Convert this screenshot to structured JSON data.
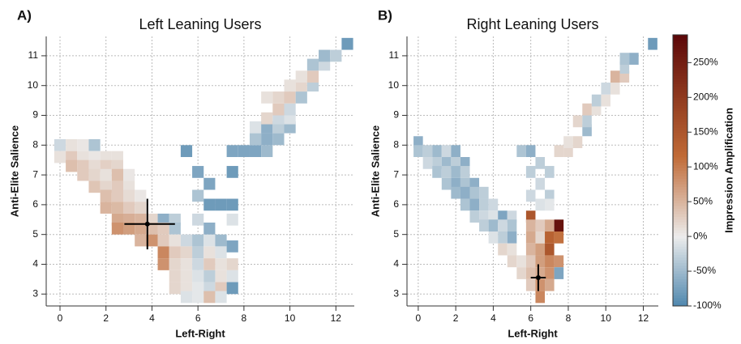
{
  "chart_data": [
    {
      "type": "heatmap",
      "panel_label": "A)",
      "title": "Left Leaning Users",
      "x_label": "Left-Right",
      "y_label": "Anti-Elite Salience",
      "xlim": [
        -0.6,
        12.8
      ],
      "xticks": [
        0,
        2,
        4,
        6,
        8,
        10,
        12
      ],
      "ylim": [
        2.6,
        11.65
      ],
      "yticks": [
        3,
        4,
        5,
        6,
        7,
        8,
        9,
        10,
        11
      ],
      "grid": true,
      "marker": {
        "x": 3.8,
        "y": 5.35,
        "x_range": [
          2.8,
          5.0
        ],
        "y_range": [
          4.5,
          6.2
        ]
      },
      "cells": [
        [
          0,
          8.0,
          -20
        ],
        [
          0.5,
          8.0,
          10
        ],
        [
          1,
          8.0,
          5
        ],
        [
          1.5,
          8.0,
          -40
        ],
        [
          0,
          7.6,
          10
        ],
        [
          0.5,
          7.6,
          30
        ],
        [
          1,
          7.6,
          10
        ],
        [
          1.5,
          7.6,
          5
        ],
        [
          2,
          7.6,
          10
        ],
        [
          2.5,
          7.6,
          10
        ],
        [
          0.5,
          7.3,
          40
        ],
        [
          1,
          7.3,
          30
        ],
        [
          1.5,
          7.3,
          15
        ],
        [
          2,
          7.3,
          25
        ],
        [
          2.5,
          7.3,
          20
        ],
        [
          1,
          7.0,
          30
        ],
        [
          1.5,
          7.0,
          20
        ],
        [
          2,
          7.0,
          10
        ],
        [
          2.5,
          7.0,
          40
        ],
        [
          3,
          7.0,
          5
        ],
        [
          1.5,
          6.6,
          35
        ],
        [
          2,
          6.6,
          20
        ],
        [
          2.5,
          6.6,
          30
        ],
        [
          3,
          6.6,
          10
        ],
        [
          2,
          6.3,
          40
        ],
        [
          2.5,
          6.3,
          30
        ],
        [
          3,
          6.3,
          15
        ],
        [
          3.5,
          6.3,
          5
        ],
        [
          2,
          5.9,
          50
        ],
        [
          2.5,
          5.9,
          45
        ],
        [
          3,
          5.9,
          30
        ],
        [
          3.5,
          5.9,
          20
        ],
        [
          2.5,
          5.5,
          60
        ],
        [
          3,
          5.5,
          55
        ],
        [
          3.5,
          5.5,
          50
        ],
        [
          4,
          5.5,
          20
        ],
        [
          4.5,
          5.5,
          -60
        ],
        [
          5,
          5.5,
          -30
        ],
        [
          2.5,
          5.2,
          80
        ],
        [
          3,
          5.2,
          70
        ],
        [
          3.5,
          5.2,
          60
        ],
        [
          4,
          5.2,
          40
        ],
        [
          4.5,
          5.2,
          30
        ],
        [
          5,
          5.2,
          -40
        ],
        [
          3.5,
          4.8,
          50
        ],
        [
          4,
          4.8,
          80
        ],
        [
          4.5,
          4.8,
          30
        ],
        [
          5,
          4.8,
          10
        ],
        [
          5.5,
          4.8,
          -20
        ],
        [
          6,
          4.8,
          -40
        ],
        [
          6.5,
          4.8,
          -10
        ],
        [
          7,
          4.8,
          -50
        ],
        [
          4.5,
          4.4,
          90
        ],
        [
          5,
          4.4,
          30
        ],
        [
          5.5,
          4.4,
          20
        ],
        [
          6,
          4.4,
          -30
        ],
        [
          6.5,
          4.4,
          10
        ],
        [
          7,
          4.4,
          -10
        ],
        [
          4.5,
          4.0,
          80
        ],
        [
          5,
          4.0,
          20
        ],
        [
          5.5,
          4.0,
          10
        ],
        [
          6,
          4.0,
          -20
        ],
        [
          6.5,
          4.0,
          30
        ],
        [
          7,
          4.0,
          10
        ],
        [
          7.5,
          4.0,
          20
        ],
        [
          5,
          3.6,
          20
        ],
        [
          5.5,
          3.6,
          10
        ],
        [
          6,
          3.6,
          -10
        ],
        [
          6.5,
          3.6,
          -30
        ],
        [
          7,
          3.6,
          10
        ],
        [
          7.5,
          3.6,
          -10
        ],
        [
          5,
          3.2,
          20
        ],
        [
          5.5,
          3.2,
          10
        ],
        [
          6,
          3.2,
          -5
        ],
        [
          6.5,
          3.2,
          -20
        ],
        [
          7,
          3.2,
          30
        ],
        [
          7.5,
          3.2,
          -80
        ],
        [
          5.5,
          2.9,
          -10
        ],
        [
          6,
          2.9,
          -5
        ],
        [
          6.5,
          2.9,
          40
        ],
        [
          7,
          2.9,
          -10
        ],
        [
          5.5,
          7.8,
          -80
        ],
        [
          7.5,
          7.8,
          -70
        ],
        [
          8,
          7.8,
          -70
        ],
        [
          8.5,
          7.8,
          -70
        ],
        [
          9,
          7.8,
          -50
        ],
        [
          6,
          7.1,
          -70
        ],
        [
          7.5,
          7.1,
          -80
        ],
        [
          6.5,
          6.7,
          -70
        ],
        [
          6,
          6.3,
          -40
        ],
        [
          6.5,
          6.0,
          -80
        ],
        [
          7,
          6.0,
          -80
        ],
        [
          7.5,
          6.0,
          -80
        ],
        [
          6,
          5.5,
          -20
        ],
        [
          7.5,
          5.5,
          -10
        ],
        [
          6.5,
          5.2,
          -60
        ],
        [
          7.5,
          4.6,
          -70
        ],
        [
          8.5,
          8.2,
          -40
        ],
        [
          9,
          8.2,
          -60
        ],
        [
          9.5,
          8.2,
          -50
        ],
        [
          8.5,
          8.6,
          -10
        ],
        [
          9,
          8.6,
          -60
        ],
        [
          9.5,
          8.6,
          -30
        ],
        [
          10,
          8.6,
          -50
        ],
        [
          9,
          8.9,
          20
        ],
        [
          9.5,
          8.9,
          -20
        ],
        [
          10,
          8.9,
          -10
        ],
        [
          9.5,
          9.2,
          30
        ],
        [
          10,
          9.2,
          -20
        ],
        [
          9,
          9.6,
          10
        ],
        [
          9.5,
          9.6,
          20
        ],
        [
          10,
          9.6,
          30
        ],
        [
          10.5,
          9.6,
          -40
        ],
        [
          10,
          10.0,
          10
        ],
        [
          10.5,
          10.0,
          20
        ],
        [
          11,
          10.0,
          -30
        ],
        [
          10.5,
          10.3,
          10
        ],
        [
          11,
          10.3,
          30
        ],
        [
          11,
          10.7,
          -40
        ],
        [
          11.5,
          10.7,
          -20
        ],
        [
          11.5,
          11.0,
          -50
        ],
        [
          12,
          11.0,
          -30
        ],
        [
          12.5,
          11.4,
          -80
        ]
      ]
    },
    {
      "type": "heatmap",
      "panel_label": "B)",
      "title": "Right Leaning Users",
      "x_label": "Left-Right",
      "y_label": "Anti-Elite Salience",
      "xlim": [
        -0.6,
        12.8
      ],
      "xticks": [
        0,
        2,
        4,
        6,
        8,
        10,
        12
      ],
      "ylim": [
        2.6,
        11.65
      ],
      "yticks": [
        3,
        4,
        5,
        6,
        7,
        8,
        9,
        10,
        11
      ],
      "grid": true,
      "marker": {
        "x": 6.4,
        "y": 3.55,
        "x_range": [
          6.0,
          6.8
        ],
        "y_range": [
          3.1,
          4.0
        ]
      },
      "cells": [
        [
          0,
          8.1,
          -60
        ],
        [
          0,
          7.8,
          -40
        ],
        [
          0.5,
          7.8,
          -30
        ],
        [
          1,
          7.8,
          -50
        ],
        [
          1.5,
          7.8,
          -20
        ],
        [
          2,
          7.8,
          -60
        ],
        [
          0.5,
          7.4,
          -20
        ],
        [
          1,
          7.4,
          -30
        ],
        [
          1.5,
          7.4,
          -50
        ],
        [
          2,
          7.4,
          -30
        ],
        [
          2.5,
          7.4,
          -60
        ],
        [
          1,
          7.1,
          -40
        ],
        [
          1.5,
          7.1,
          -30
        ],
        [
          2,
          7.1,
          -50
        ],
        [
          2.5,
          7.1,
          -30
        ],
        [
          1.5,
          6.7,
          -40
        ],
        [
          2,
          6.7,
          -60
        ],
        [
          2.5,
          6.7,
          -40
        ],
        [
          3,
          6.7,
          -60
        ],
        [
          2,
          6.4,
          -50
        ],
        [
          2.5,
          6.4,
          -60
        ],
        [
          3,
          6.4,
          -40
        ],
        [
          3.5,
          6.4,
          -30
        ],
        [
          2.5,
          6.0,
          -40
        ],
        [
          3,
          6.0,
          -60
        ],
        [
          3.5,
          6.0,
          -30
        ],
        [
          4,
          6.0,
          -20
        ],
        [
          3,
          5.6,
          -30
        ],
        [
          3.5,
          5.6,
          -20
        ],
        [
          4,
          5.6,
          -10
        ],
        [
          4.5,
          5.6,
          -70
        ],
        [
          5,
          5.6,
          -20
        ],
        [
          6,
          5.6,
          150
        ],
        [
          3.5,
          5.3,
          -30
        ],
        [
          4,
          5.3,
          -50
        ],
        [
          4.5,
          5.3,
          -20
        ],
        [
          5,
          5.3,
          -40
        ],
        [
          6,
          5.3,
          50
        ],
        [
          6.5,
          5.3,
          30
        ],
        [
          7,
          5.3,
          60
        ],
        [
          7.5,
          5.3,
          270
        ],
        [
          4,
          4.9,
          -10
        ],
        [
          4.5,
          4.9,
          -30
        ],
        [
          5,
          4.9,
          -60
        ],
        [
          6,
          4.9,
          60
        ],
        [
          6.5,
          4.9,
          20
        ],
        [
          7,
          4.9,
          130
        ],
        [
          7.5,
          4.9,
          110
        ],
        [
          4.5,
          4.5,
          20
        ],
        [
          5,
          4.5,
          10
        ],
        [
          6,
          4.5,
          50
        ],
        [
          6.5,
          4.5,
          70
        ],
        [
          7,
          4.5,
          150
        ],
        [
          5,
          4.1,
          20
        ],
        [
          5.5,
          4.1,
          10
        ],
        [
          6,
          4.1,
          30
        ],
        [
          6.5,
          4.1,
          70
        ],
        [
          7,
          4.1,
          90
        ],
        [
          7.5,
          4.1,
          80
        ],
        [
          5.5,
          3.7,
          20
        ],
        [
          6,
          3.7,
          40
        ],
        [
          6.5,
          3.7,
          60
        ],
        [
          7,
          3.7,
          80
        ],
        [
          7.5,
          3.7,
          -70
        ],
        [
          6,
          3.3,
          30
        ],
        [
          6.5,
          3.3,
          80
        ],
        [
          7,
          3.3,
          60
        ],
        [
          6.5,
          2.9,
          90
        ],
        [
          5.5,
          7.8,
          -40
        ],
        [
          6,
          7.8,
          -60
        ],
        [
          7.5,
          7.8,
          20
        ],
        [
          8,
          7.8,
          20
        ],
        [
          6.5,
          7.4,
          -30
        ],
        [
          6,
          7.1,
          -30
        ],
        [
          7,
          7.1,
          -30
        ],
        [
          6.5,
          6.7,
          -20
        ],
        [
          6,
          6.3,
          -20
        ],
        [
          7,
          6.3,
          -30
        ],
        [
          6.5,
          6.0,
          -10
        ],
        [
          7,
          6.0,
          -5
        ],
        [
          8,
          8.1,
          10
        ],
        [
          8.5,
          8.1,
          20
        ],
        [
          9,
          8.5,
          -50
        ],
        [
          8.5,
          8.8,
          20
        ],
        [
          9,
          8.8,
          -30
        ],
        [
          9,
          9.2,
          30
        ],
        [
          9.5,
          9.2,
          10
        ],
        [
          9.5,
          9.5,
          -30
        ],
        [
          10,
          9.5,
          10
        ],
        [
          10,
          9.9,
          -20
        ],
        [
          10.5,
          9.9,
          10
        ],
        [
          10.5,
          10.3,
          50
        ],
        [
          11,
          10.3,
          30
        ],
        [
          11,
          10.6,
          -30
        ],
        [
          11,
          10.9,
          -40
        ],
        [
          11.5,
          10.9,
          -60
        ],
        [
          12.5,
          11.4,
          -80
        ]
      ]
    }
  ],
  "colorbar": {
    "label": "Impression Amplification",
    "zlim": [
      -100,
      290
    ],
    "colors": [
      "#4f87ae",
      "#ececec",
      "#c06a36",
      "#5c0808"
    ],
    "zticks": [
      {
        "value": -100,
        "label": "-100%"
      },
      {
        "value": -50,
        "label": "-50%"
      },
      {
        "value": 0,
        "label": "0%"
      },
      {
        "value": 50,
        "label": "50%"
      },
      {
        "value": 100,
        "label": "100%"
      },
      {
        "value": 150,
        "label": "150%"
      },
      {
        "value": 200,
        "label": "200%"
      },
      {
        "value": 250,
        "label": "250%"
      }
    ]
  }
}
